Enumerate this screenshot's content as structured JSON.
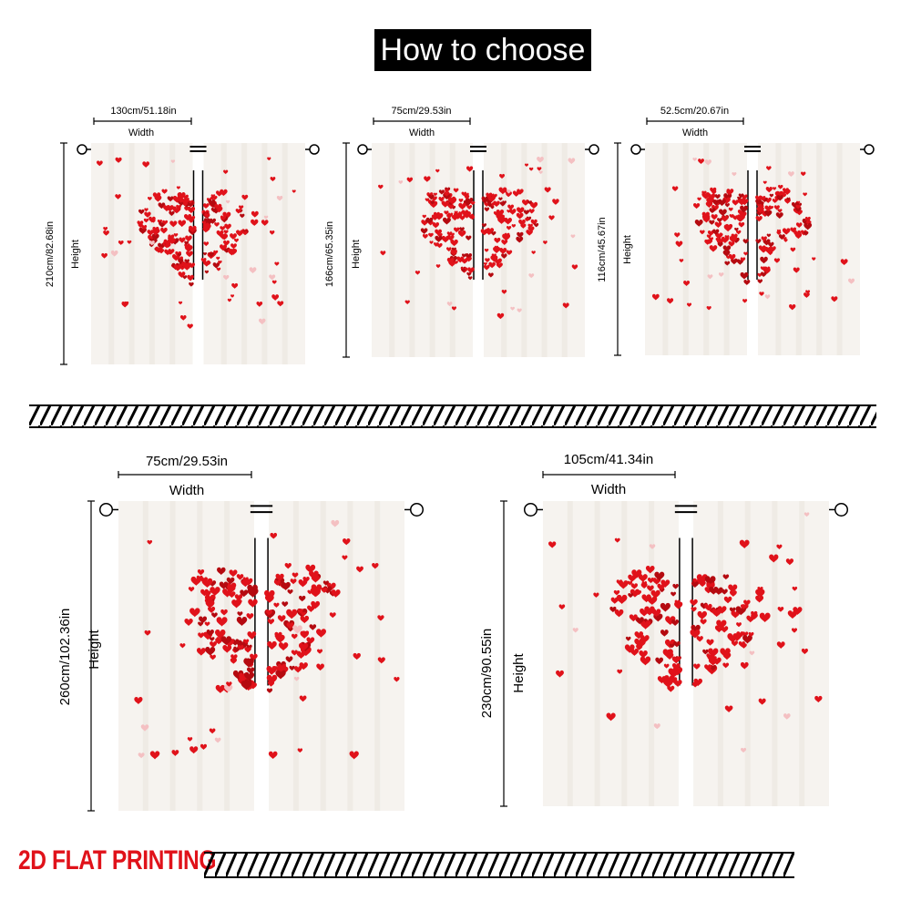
{
  "header": {
    "title": "How to choose"
  },
  "panels": [
    {
      "width_value": "130cm/51.18in",
      "width_label": "Width",
      "height_value": "210cm/82.68in",
      "height_label": "Height"
    },
    {
      "width_value": "75cm/29.53in",
      "width_label": "Width",
      "height_value": "166cm/65.35in",
      "height_label": "Height"
    },
    {
      "width_value": "52.5cm/20.67in",
      "width_label": "Width",
      "height_value": "116cm/45.67in",
      "height_label": "Height"
    },
    {
      "width_value": "75cm/29.53in",
      "width_label": "Width",
      "height_value": "260cm/102.36in",
      "height_label": "Height"
    },
    {
      "width_value": "105cm/41.34in",
      "width_label": "Width",
      "height_value": "230cm/90.55in",
      "height_label": "Height"
    }
  ],
  "footer": {
    "label": "2D FLAT PRINTING"
  },
  "colors": {
    "heart_red": "#e0121a",
    "curtain": "#f6f3ef",
    "title_bg": "#000000",
    "title_text": "#ffffff"
  }
}
